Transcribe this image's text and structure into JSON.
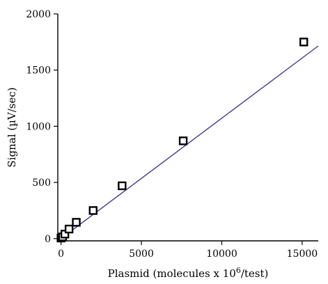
{
  "chart_data": {
    "type": "scatter",
    "xlabel_main": "Plasmid (molecules x 10",
    "xlabel_sup": "6",
    "xlabel_tail": "/test)",
    "ylabel": "Signal  (µV/sec)",
    "xlim": [
      -200,
      16000
    ],
    "ylim": [
      -20,
      2000
    ],
    "xticks": [
      0,
      5000,
      10000,
      15000
    ],
    "yticks": [
      0,
      500,
      1000,
      1500,
      2000
    ],
    "tick_labels_x": [
      "0",
      "5000",
      "10000",
      "15000"
    ],
    "tick_labels_y": [
      "0",
      "500",
      "1000",
      "1500",
      "2000"
    ],
    "points": [
      {
        "x": 0,
        "y": 5
      },
      {
        "x": 100,
        "y": 15
      },
      {
        "x": 240,
        "y": 40
      },
      {
        "x": 500,
        "y": 85
      },
      {
        "x": 950,
        "y": 145
      },
      {
        "x": 2000,
        "y": 250
      },
      {
        "x": 3800,
        "y": 470
      },
      {
        "x": 7600,
        "y": 870
      },
      {
        "x": 15100,
        "y": 1750
      }
    ],
    "fit_line": {
      "x": [
        0,
        16000
      ],
      "y": [
        0,
        1715
      ]
    },
    "colors": {
      "fit_line": "#3b3b8f",
      "marker_stroke": "#000000",
      "axis": "#000000"
    },
    "grid": false,
    "legend": "none"
  }
}
